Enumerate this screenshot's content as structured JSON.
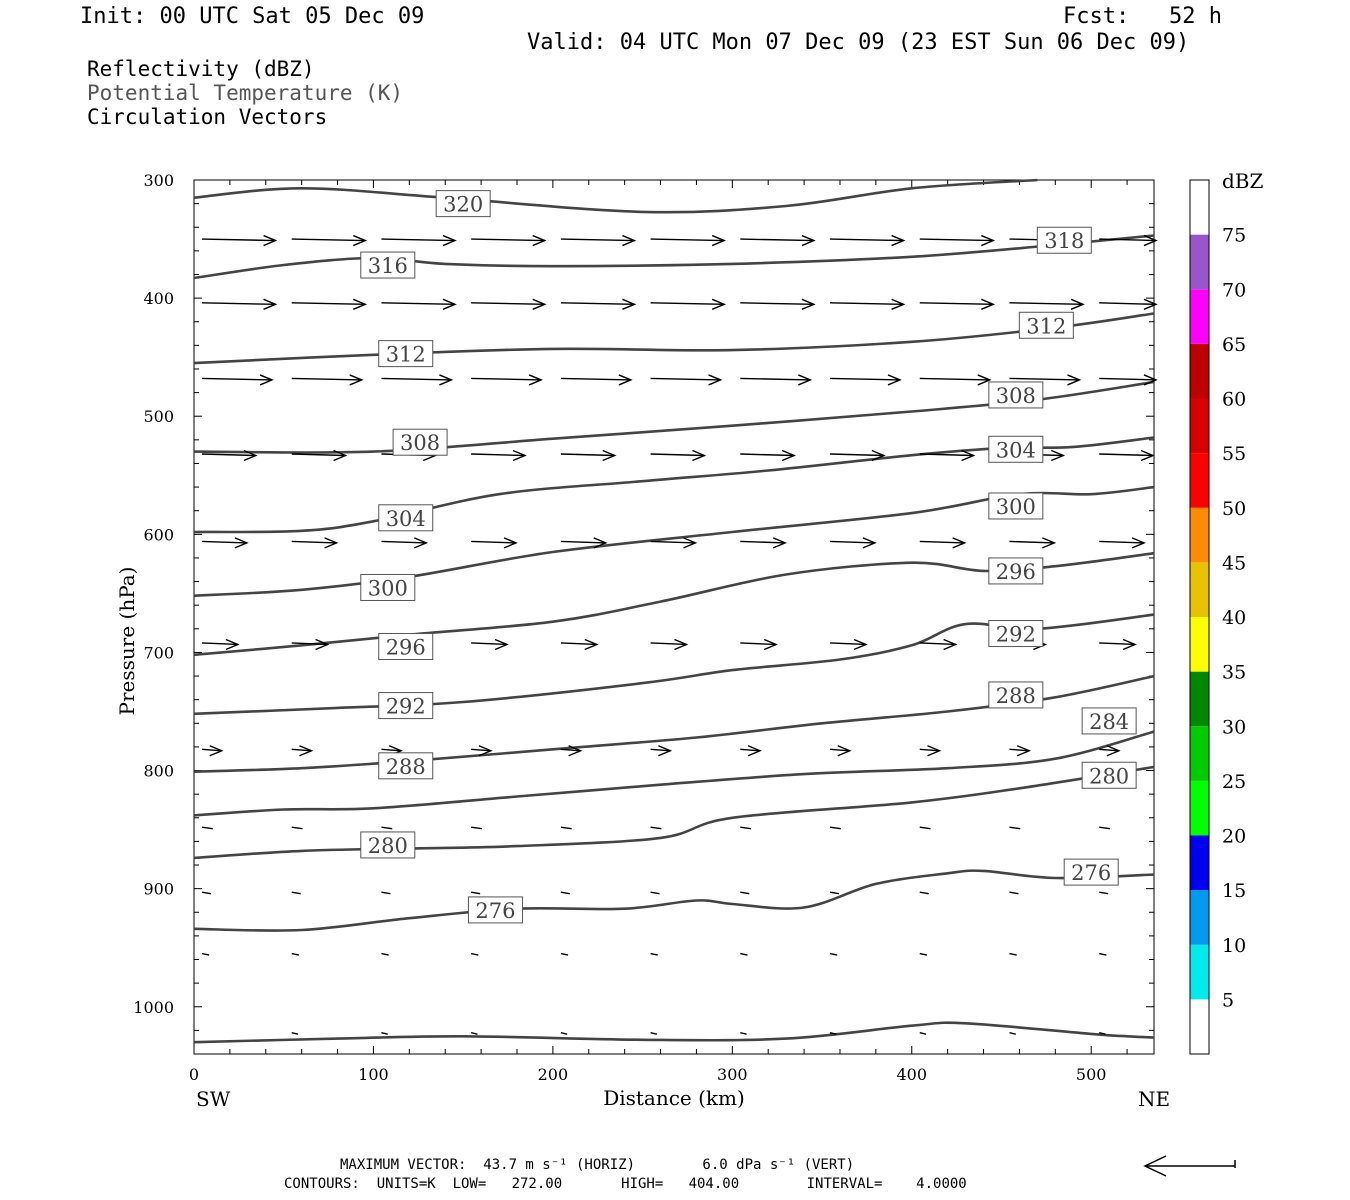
{
  "header": {
    "init": "Init: 00 UTC Sat 05 Dec 09",
    "fcst": "Fcst:   52 h",
    "valid": "Valid: 04 UTC Mon 07 Dec 09 (23 EST Sun 06 Dec 09)",
    "field1": "Reflectivity (dBZ)",
    "field2": "Potential Temperature (K)",
    "field3": "Circulation Vectors"
  },
  "footer": {
    "max_vector": "MAXIMUM VECTOR:  43.7 m s⁻¹ (HORIZ)        6.0 dPa s⁻¹ (VERT)",
    "contours": "CONTOURS:  UNITS=K  LOW=   272.00       HIGH=   404.00        INTERVAL=    4.0000"
  },
  "colorbar": {
    "title": "dBZ",
    "labels": [
      "5",
      "10",
      "15",
      "20",
      "25",
      "30",
      "35",
      "40",
      "45",
      "50",
      "55",
      "60",
      "65",
      "70",
      "75"
    ],
    "colors": [
      "#00ebeb",
      "#0099f0",
      "#0000f0",
      "#00ff00",
      "#00cc00",
      "#008800",
      "#ffff00",
      "#e6c200",
      "#ff8c00",
      "#ff0000",
      "#d90000",
      "#bd0000",
      "#ff00ff",
      "#9955c9",
      "#ffffff"
    ]
  },
  "chart_data": {
    "type": "line",
    "title": "Potential Temperature (K)",
    "xlabel": "Distance (km)",
    "ylabel": "Pressure (hPa)",
    "xlim": [
      0,
      535
    ],
    "ylim": [
      300,
      1040
    ],
    "y_scale": "pressure (linear, inverted)",
    "x_ticks": [
      0,
      100,
      200,
      300,
      400,
      500
    ],
    "x_tick_labels": [
      "0",
      "100",
      "200",
      "300",
      "400",
      "500"
    ],
    "y_ticks": [
      300,
      400,
      500,
      600,
      700,
      800,
      900,
      1000
    ],
    "y_tick_labels": [
      "300",
      "400",
      "500",
      "600",
      "700",
      "800",
      "900",
      "1000"
    ],
    "x_end_labels": {
      "left": "SW",
      "right": "NE"
    },
    "grid": false,
    "contour_color": "#444444",
    "isentropes": [
      {
        "theta": 320,
        "x": [
          0,
          60,
          140,
          250,
          330,
          400,
          470
        ],
        "p": [
          315,
          307,
          315,
          327,
          322,
          307,
          300
        ]
      },
      {
        "theta": 316,
        "x": [
          0,
          50,
          100,
          140,
          200,
          300,
          400,
          480,
          535
        ],
        "p": [
          383,
          372,
          366,
          371,
          373,
          371,
          365,
          355,
          347
        ]
      },
      {
        "theta": 312,
        "x": [
          0,
          100,
          200,
          300,
          400,
          480,
          535
        ],
        "p": [
          455,
          448,
          443,
          444,
          437,
          425,
          413
        ]
      },
      {
        "theta": 308,
        "x": [
          0,
          100,
          200,
          300,
          400,
          470,
          535
        ],
        "p": [
          530,
          530,
          519,
          508,
          496,
          486,
          471
        ]
      },
      {
        "theta": 304,
        "x": [
          0,
          60,
          100,
          170,
          250,
          320,
          400,
          450,
          490,
          535
        ],
        "p": [
          598,
          597,
          589,
          566,
          555,
          546,
          533,
          527,
          526,
          518
        ]
      },
      {
        "theta": 300,
        "x": [
          0,
          60,
          120,
          200,
          300,
          400,
          460,
          500,
          535
        ],
        "p": [
          652,
          647,
          636,
          615,
          598,
          582,
          566,
          566,
          560
        ]
      },
      {
        "theta": 296,
        "x": [
          0,
          60,
          120,
          200,
          260,
          330,
          400,
          440,
          480,
          535
        ],
        "p": [
          702,
          694,
          685,
          674,
          657,
          634,
          624,
          631,
          627,
          616
        ]
      },
      {
        "theta": 292,
        "x": [
          0,
          80,
          150,
          250,
          300,
          360,
          400,
          430,
          470,
          535
        ],
        "p": [
          752,
          747,
          742,
          726,
          715,
          706,
          694,
          676,
          680,
          668
        ]
      },
      {
        "theta": 288,
        "x": [
          0,
          60,
          120,
          200,
          280,
          350,
          420,
          480,
          535
        ],
        "p": [
          801,
          798,
          792,
          782,
          772,
          760,
          750,
          738,
          720
        ]
      },
      {
        "theta": 284,
        "x": [
          0,
          50,
          100,
          180,
          260,
          340,
          420,
          480,
          535
        ],
        "p": [
          838,
          833,
          832,
          822,
          812,
          803,
          798,
          790,
          767
        ]
      },
      {
        "theta": 280,
        "x": [
          0,
          60,
          120,
          180,
          260,
          300,
          400,
          460,
          535
        ],
        "p": [
          874,
          868,
          866,
          864,
          857,
          840,
          827,
          815,
          797
        ]
      },
      {
        "theta": 276,
        "x": [
          0,
          60,
          120,
          180,
          240,
          280,
          300,
          340,
          380,
          420,
          440,
          480,
          535
        ],
        "p": [
          934,
          935,
          925,
          917,
          917,
          910,
          913,
          916,
          896,
          887,
          885,
          891,
          888
        ]
      },
      {
        "theta": 272,
        "x": [
          0,
          80,
          150,
          250,
          330,
          400,
          430,
          500,
          520,
          535
        ],
        "p": [
          1030,
          1027,
          1025,
          1028,
          1027,
          1016,
          1014,
          1023,
          1025,
          1026
        ]
      }
    ],
    "contour_labels": [
      {
        "theta": 320,
        "x": 150,
        "p": 320
      },
      {
        "theta": 316,
        "x": 108,
        "p": 372
      },
      {
        "theta": 318,
        "x": 485,
        "p": 351
      },
      {
        "theta": 312,
        "x": 118,
        "p": 447
      },
      {
        "theta": 312,
        "x": 475,
        "p": 423
      },
      {
        "theta": 308,
        "x": 126,
        "p": 522
      },
      {
        "theta": 308,
        "x": 458,
        "p": 482
      },
      {
        "theta": 304,
        "x": 118,
        "p": 586
      },
      {
        "theta": 304,
        "x": 458,
        "p": 528
      },
      {
        "theta": 300,
        "x": 108,
        "p": 645
      },
      {
        "theta": 300,
        "x": 458,
        "p": 576
      },
      {
        "theta": 296,
        "x": 118,
        "p": 695
      },
      {
        "theta": 296,
        "x": 458,
        "p": 631
      },
      {
        "theta": 292,
        "x": 118,
        "p": 745
      },
      {
        "theta": 292,
        "x": 458,
        "p": 684
      },
      {
        "theta": 288,
        "x": 118,
        "p": 796
      },
      {
        "theta": 288,
        "x": 458,
        "p": 736
      },
      {
        "theta": 284,
        "x": 510,
        "p": 758
      },
      {
        "theta": 280,
        "x": 108,
        "p": 863
      },
      {
        "theta": 280,
        "x": 510,
        "p": 804
      },
      {
        "theta": 276,
        "x": 168,
        "p": 918
      },
      {
        "theta": 276,
        "x": 500,
        "p": 886
      }
    ],
    "vector_rows": [
      {
        "p": 350,
        "length": 0.82,
        "x": [
          0,
          50,
          100,
          150,
          200,
          250,
          300,
          350,
          400,
          450,
          500
        ]
      },
      {
        "p": 404,
        "length": 0.82,
        "x": [
          0,
          50,
          100,
          150,
          200,
          250,
          300,
          350,
          400,
          450,
          500
        ]
      },
      {
        "p": 468,
        "length": 0.78,
        "x": [
          0,
          50,
          100,
          150,
          200,
          250,
          300,
          350,
          400,
          450,
          500
        ]
      },
      {
        "p": 532,
        "length": 0.6,
        "x": [
          0,
          50,
          100,
          150,
          200,
          250,
          300,
          350,
          400,
          450,
          500
        ]
      },
      {
        "p": 606,
        "length": 0.5,
        "x": [
          0,
          50,
          100,
          150,
          200,
          250,
          300,
          350,
          400,
          450,
          500
        ]
      },
      {
        "p": 692,
        "length": 0.4,
        "x": [
          0,
          50,
          100,
          150,
          200,
          250,
          300,
          350,
          400,
          450,
          500
        ]
      },
      {
        "p": 782,
        "length": 0.22,
        "x": [
          0,
          50,
          100,
          150,
          200,
          250,
          300,
          350,
          400,
          450,
          500
        ]
      },
      {
        "p": 848,
        "length": 0.12,
        "x": [
          0,
          50,
          100,
          150,
          200,
          250,
          300,
          350,
          400,
          450,
          500
        ]
      },
      {
        "p": 903,
        "length": 0.1,
        "x": [
          0,
          50,
          100,
          150,
          200,
          250,
          300,
          350,
          400,
          450,
          500
        ]
      },
      {
        "p": 955,
        "length": 0.08,
        "x": [
          0,
          50,
          100,
          150,
          200,
          250,
          300,
          350,
          400,
          450,
          500
        ]
      },
      {
        "p": 1022,
        "length": 0.07,
        "x": [
          50,
          100,
          150,
          200,
          250,
          300,
          350,
          400,
          450,
          500
        ]
      }
    ],
    "reference_vector": {
      "direction": "left"
    }
  }
}
